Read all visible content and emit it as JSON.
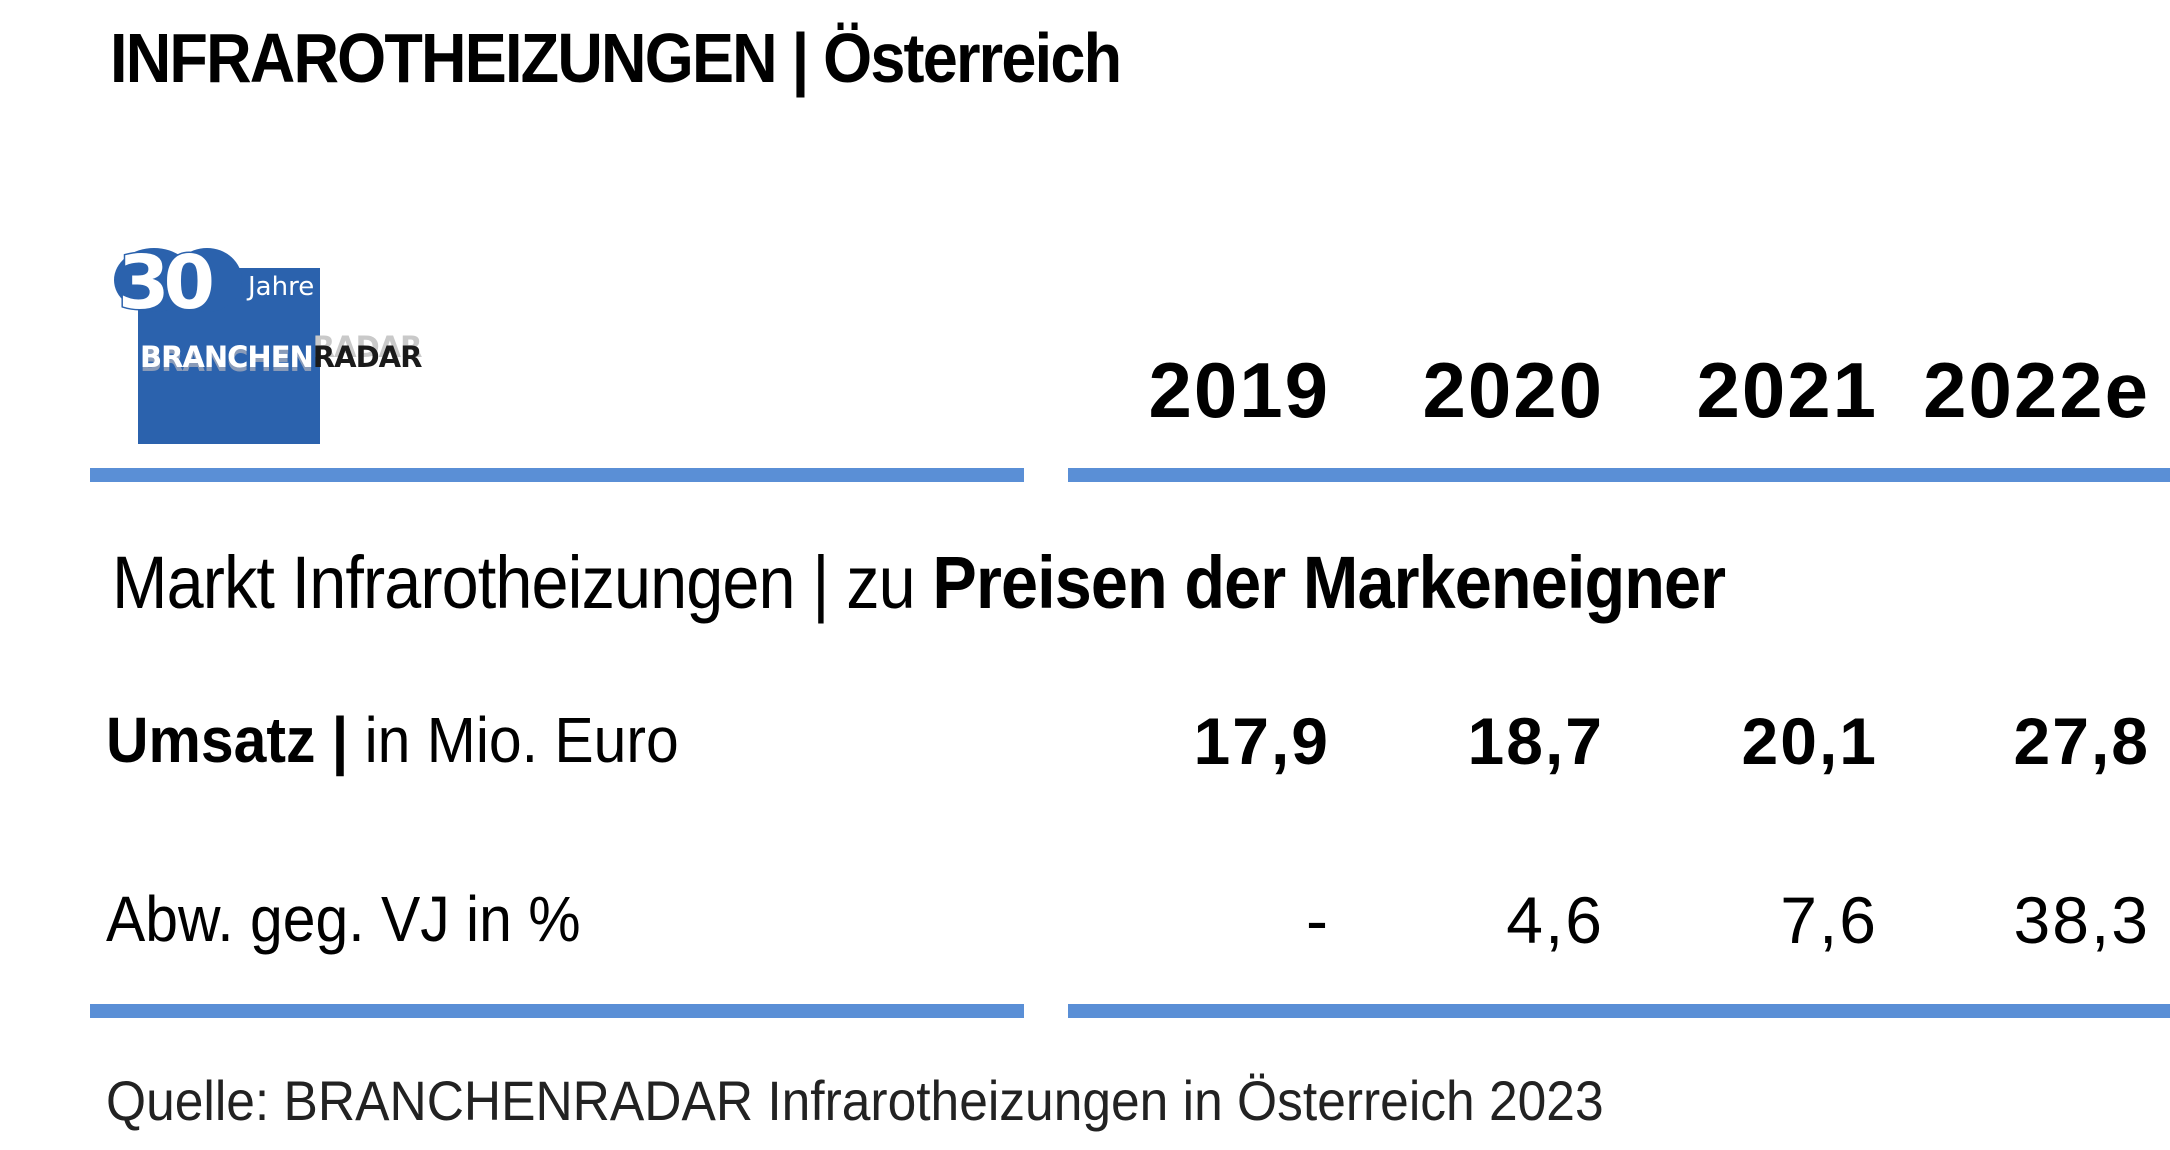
{
  "title": "INFRAROTHEIZUNGEN | Österreich",
  "logo": {
    "number": "30",
    "jahre": "Jahre",
    "word_part1": "BRANCHEN",
    "word_part2": "RADAR",
    "color": "#2b62ad"
  },
  "years": [
    "2019",
    "2020",
    "2021",
    "2022e"
  ],
  "subtitle": {
    "plain": "Markt Infrarotheizungen | zu ",
    "bold": "Preisen der Markeneigner"
  },
  "rows": [
    {
      "label_bold": "Umsatz |",
      "label_plain": " in Mio. Euro",
      "values": [
        "17,9",
        "18,7",
        "20,1",
        "27,8"
      ]
    },
    {
      "label_bold": "",
      "label_plain": "Abw. geg. VJ in %",
      "values": [
        "-",
        "4,6",
        "7,6",
        "38,3"
      ]
    }
  ],
  "source": "Quelle: BRANCHENRADAR Infrarotheizungen in Österreich 2023",
  "colors": {
    "rule": "#5a8fd6",
    "text": "#000000"
  }
}
